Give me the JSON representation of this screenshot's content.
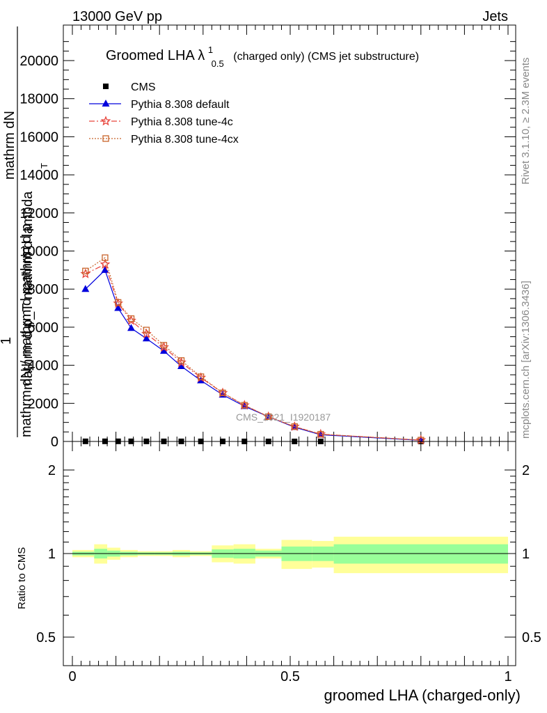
{
  "header": {
    "left": "13000 GeV pp",
    "right": "Jets"
  },
  "side_labels": {
    "rivet": "Rivet 3.1.10, ≥ 2.3M events",
    "mcplots": "mcplots.cern.ch [arXiv:1306.3436]"
  },
  "colors": {
    "cms": "#000000",
    "default": "#0000dd",
    "tune4c": "#e8433a",
    "tune4cx": "#c8632a",
    "band_inner": "#99ff99",
    "band_outer": "#ffff99"
  },
  "chart_data": [
    {
      "type": "line",
      "title": "Groomed LHA λ",
      "title_sup": "1",
      "title_sub": "0.5",
      "title_suffix": "(charged only) (CMS jet substructure)",
      "ylabel_top": "mathrm dN",
      "ylabel_top2": "mathrm d p_T mathrm d lambda",
      "ylabel_num": "1",
      "ylabel_bottom": "mathrm dN / mathrm d mathrm d p",
      "ylabel_bottom_sub": "T",
      "watermark": "CMS_2021_I1920187",
      "xlim": [
        -0.03,
        1.01
      ],
      "ylim": [
        0,
        21500
      ],
      "xticks": [
        "0",
        "0.5",
        "1"
      ],
      "yticks": [
        "0",
        "2000",
        "4000",
        "6000",
        "8000",
        "10000",
        "12000",
        "14000",
        "16000",
        "18000",
        "20000"
      ],
      "legend_position": "top-left",
      "x": [
        0.03,
        0.075,
        0.105,
        0.135,
        0.17,
        0.21,
        0.25,
        0.295,
        0.345,
        0.395,
        0.45,
        0.51,
        0.57,
        0.8
      ],
      "series": [
        {
          "name": "CMS",
          "marker": "square",
          "values": [
            6,
            7,
            7,
            6,
            5,
            4,
            4,
            3,
            3,
            2,
            2,
            1,
            1,
            0
          ]
        },
        {
          "name": "Pythia 8.308 default",
          "marker": "triangle",
          "values": [
            8000,
            9000,
            7000,
            5950,
            5400,
            4750,
            3950,
            3200,
            2450,
            1850,
            1300,
            750,
            350,
            60
          ]
        },
        {
          "name": "Pythia 8.308 tune-4c",
          "marker": "star",
          "values": [
            8800,
            9300,
            7250,
            6350,
            5650,
            4950,
            4150,
            3350,
            2550,
            1900,
            1300,
            780,
            380,
            70
          ]
        },
        {
          "name": "Pythia 8.308 tune-4cx",
          "marker": "open-square",
          "values": [
            8950,
            9650,
            7300,
            6450,
            5850,
            5050,
            4250,
            3400,
            2550,
            1900,
            1300,
            780,
            380,
            70
          ]
        }
      ]
    },
    {
      "type": "area",
      "title": "",
      "ylabel": "Ratio to CMS",
      "xlabel": "groomed LHA (charged-only)",
      "ylim": [
        0.4,
        2.3
      ],
      "log_scale": true,
      "yticks": [
        "0.5",
        "1",
        "2"
      ],
      "bins": [
        {
          "lo": 0.0,
          "hi": 0.05,
          "inner": [
            0.985,
            1.015
          ],
          "outer": [
            0.97,
            1.03
          ]
        },
        {
          "lo": 0.05,
          "hi": 0.08,
          "inner": [
            0.96,
            1.04
          ],
          "outer": [
            0.92,
            1.08
          ]
        },
        {
          "lo": 0.08,
          "hi": 0.11,
          "inner": [
            0.975,
            1.025
          ],
          "outer": [
            0.95,
            1.05
          ]
        },
        {
          "lo": 0.11,
          "hi": 0.15,
          "inner": [
            0.985,
            1.015
          ],
          "outer": [
            0.97,
            1.03
          ]
        },
        {
          "lo": 0.15,
          "hi": 0.19,
          "inner": [
            0.99,
            1.01
          ],
          "outer": [
            0.98,
            1.02
          ]
        },
        {
          "lo": 0.19,
          "hi": 0.23,
          "inner": [
            0.99,
            1.01
          ],
          "outer": [
            0.98,
            1.02
          ]
        },
        {
          "lo": 0.23,
          "hi": 0.27,
          "inner": [
            0.985,
            1.015
          ],
          "outer": [
            0.97,
            1.03
          ]
        },
        {
          "lo": 0.27,
          "hi": 0.32,
          "inner": [
            0.99,
            1.01
          ],
          "outer": [
            0.98,
            1.02
          ]
        },
        {
          "lo": 0.32,
          "hi": 0.37,
          "inner": [
            0.965,
            1.035
          ],
          "outer": [
            0.93,
            1.07
          ]
        },
        {
          "lo": 0.37,
          "hi": 0.42,
          "inner": [
            0.96,
            1.04
          ],
          "outer": [
            0.92,
            1.08
          ]
        },
        {
          "lo": 0.42,
          "hi": 0.48,
          "inner": [
            0.975,
            1.025
          ],
          "outer": [
            0.96,
            1.04
          ]
        },
        {
          "lo": 0.48,
          "hi": 0.55,
          "inner": [
            0.94,
            1.06
          ],
          "outer": [
            0.88,
            1.12
          ]
        },
        {
          "lo": 0.55,
          "hi": 0.6,
          "inner": [
            0.94,
            1.06
          ],
          "outer": [
            0.89,
            1.11
          ]
        },
        {
          "lo": 0.6,
          "hi": 1.0,
          "inner": [
            0.92,
            1.08
          ],
          "outer": [
            0.85,
            1.15
          ]
        }
      ]
    }
  ]
}
